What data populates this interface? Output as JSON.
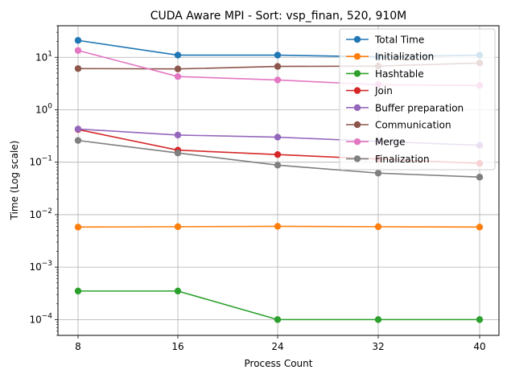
{
  "chart_data": {
    "type": "line",
    "title": "CUDA Aware MPI - Sort: vsp_finan, 520, 910M",
    "xlabel": "Process Count",
    "ylabel": "Time (Log scale)",
    "yscale": "log",
    "ylim": [
      5e-05,
      40
    ],
    "x": [
      8,
      16,
      24,
      32,
      40
    ],
    "xticks": [
      "8",
      "16",
      "24",
      "32",
      "40"
    ],
    "yticks": [
      {
        "value": 0.0001,
        "base": "10",
        "exp": "−4"
      },
      {
        "value": 0.001,
        "base": "10",
        "exp": "−3"
      },
      {
        "value": 0.01,
        "base": "10",
        "exp": "−2"
      },
      {
        "value": 0.1,
        "base": "10",
        "exp": "−1"
      },
      {
        "value": 1,
        "base": "10",
        "exp": "0"
      },
      {
        "value": 10,
        "base": "10",
        "exp": "1"
      }
    ],
    "grid": true,
    "legend_position": "top-right",
    "series": [
      {
        "name": "Total Time",
        "color": "#1f77b4",
        "values": [
          21,
          11,
          11,
          10.2,
          11
        ]
      },
      {
        "name": "Initialization",
        "color": "#ff7f0e",
        "values": [
          0.0058,
          0.0059,
          0.006,
          0.0059,
          0.0058
        ]
      },
      {
        "name": "Hashtable",
        "color": "#2ca02c",
        "values": [
          0.00035,
          0.00035,
          0.0001,
          0.0001,
          0.0001
        ]
      },
      {
        "name": "Join",
        "color": "#d62728",
        "values": [
          0.42,
          0.17,
          0.14,
          0.115,
          0.095
        ]
      },
      {
        "name": "Buffer preparation",
        "color": "#9467bd",
        "values": [
          0.43,
          0.33,
          0.3,
          0.25,
          0.21
        ]
      },
      {
        "name": "Communication",
        "color": "#8c564b",
        "values": [
          6.1,
          6.0,
          6.7,
          6.8,
          7.8
        ]
      },
      {
        "name": "Merge",
        "color": "#e377c2",
        "values": [
          13.5,
          4.3,
          3.7,
          3.0,
          2.9
        ]
      },
      {
        "name": "Finalization",
        "color": "#7f7f7f",
        "values": [
          0.26,
          0.15,
          0.088,
          0.062,
          0.052
        ]
      }
    ]
  }
}
